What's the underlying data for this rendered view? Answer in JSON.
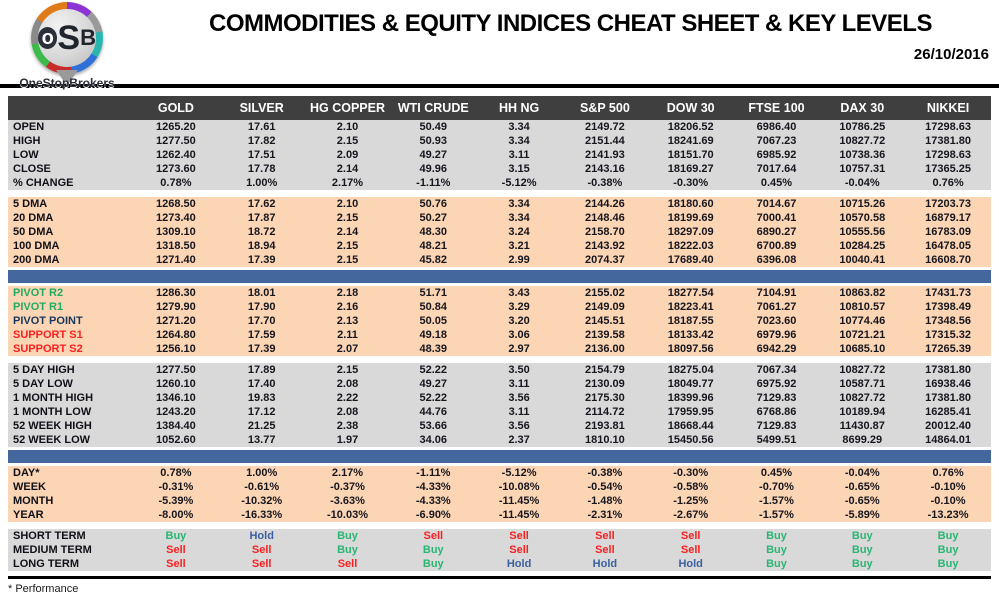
{
  "header": {
    "logo": {
      "l1": "o",
      "l2": "S",
      "l3": "B",
      "name": "OneStopBrokers"
    },
    "title": "COMMODITIES & EQUITY INDICES CHEAT SHEET & KEY LEVELS",
    "date": "26/10/2016"
  },
  "colors": {
    "header_row_bg": "#3f3f3f",
    "gray_section": "#d9d9d9",
    "peach_section": "#fcd5b4",
    "blue_separator": "#44689e",
    "buy_green": "#2ab573",
    "sell_red": "#fb2020",
    "hold_blue": "#3a5fa0",
    "pivot_point_navy": "#17375d"
  },
  "table": {
    "columns": [
      "GOLD",
      "SILVER",
      "HG COPPER",
      "WTI CRUDE",
      "HH NG",
      "S&P 500",
      "DOW 30",
      "FTSE 100",
      "DAX 30",
      "NIKKEI"
    ],
    "sections": [
      {
        "name": "ohlc",
        "bg": "gray",
        "after": "white",
        "rows": [
          {
            "label": "OPEN",
            "values": [
              "1265.20",
              "17.61",
              "2.10",
              "50.49",
              "3.34",
              "2149.72",
              "18206.52",
              "6986.40",
              "10786.25",
              "17298.63"
            ]
          },
          {
            "label": "HIGH",
            "values": [
              "1277.50",
              "17.82",
              "2.15",
              "50.93",
              "3.34",
              "2151.44",
              "18241.69",
              "7067.23",
              "10827.72",
              "17381.80"
            ]
          },
          {
            "label": "LOW",
            "values": [
              "1262.40",
              "17.51",
              "2.09",
              "49.27",
              "3.11",
              "2141.93",
              "18151.70",
              "6985.92",
              "10738.36",
              "17298.63"
            ]
          },
          {
            "label": "CLOSE",
            "values": [
              "1273.60",
              "17.78",
              "2.14",
              "49.96",
              "3.15",
              "2143.16",
              "18169.27",
              "7017.64",
              "10757.31",
              "17365.25"
            ]
          },
          {
            "label": "% CHANGE",
            "values": [
              "0.78%",
              "1.00%",
              "2.17%",
              "-1.11%",
              "-5.12%",
              "-0.38%",
              "-0.30%",
              "0.45%",
              "-0.04%",
              "0.76%"
            ]
          }
        ]
      },
      {
        "name": "moving-averages",
        "bg": "peach",
        "after": "blue",
        "rows": [
          {
            "label": "5 DMA",
            "values": [
              "1268.50",
              "17.62",
              "2.10",
              "50.76",
              "3.34",
              "2144.26",
              "18180.60",
              "7014.67",
              "10715.26",
              "17203.73"
            ]
          },
          {
            "label": "20 DMA",
            "values": [
              "1273.40",
              "17.87",
              "2.15",
              "50.27",
              "3.34",
              "2148.46",
              "18199.69",
              "7000.41",
              "10570.58",
              "16879.17"
            ]
          },
          {
            "label": "50 DMA",
            "values": [
              "1309.10",
              "18.72",
              "2.14",
              "48.30",
              "3.24",
              "2158.70",
              "18297.09",
              "6890.27",
              "10555.56",
              "16783.09"
            ]
          },
          {
            "label": "100 DMA",
            "values": [
              "1318.50",
              "18.94",
              "2.15",
              "48.21",
              "3.21",
              "2143.92",
              "18222.03",
              "6700.89",
              "10284.25",
              "16478.05"
            ]
          },
          {
            "label": "200 DMA",
            "values": [
              "1271.40",
              "17.39",
              "2.15",
              "45.82",
              "2.99",
              "2074.37",
              "17689.40",
              "6396.08",
              "10040.41",
              "16608.70"
            ]
          }
        ]
      },
      {
        "name": "pivots",
        "bg": "peach",
        "after": "white",
        "rows": [
          {
            "label": "PIVOT R2",
            "label_color": "green",
            "values": [
              "1286.30",
              "18.01",
              "2.18",
              "51.71",
              "3.43",
              "2155.02",
              "18277.54",
              "7104.91",
              "10863.82",
              "17431.73"
            ]
          },
          {
            "label": "PIVOT R1",
            "label_color": "green",
            "values": [
              "1279.90",
              "17.90",
              "2.16",
              "50.84",
              "3.29",
              "2149.09",
              "18223.41",
              "7061.27",
              "10810.57",
              "17398.49"
            ]
          },
          {
            "label": "PIVOT POINT",
            "label_color": "navy",
            "values": [
              "1271.20",
              "17.70",
              "2.13",
              "50.05",
              "3.20",
              "2145.51",
              "18187.55",
              "7023.60",
              "10774.46",
              "17348.56"
            ]
          },
          {
            "label": "SUPPORT S1",
            "label_color": "red",
            "values": [
              "1264.80",
              "17.59",
              "2.11",
              "49.18",
              "3.06",
              "2139.58",
              "18133.42",
              "6979.96",
              "10721.21",
              "17315.32"
            ]
          },
          {
            "label": "SUPPORT S2",
            "label_color": "red",
            "values": [
              "1256.10",
              "17.39",
              "2.07",
              "48.39",
              "2.97",
              "2136.00",
              "18097.56",
              "6942.29",
              "10685.10",
              "17265.39"
            ]
          }
        ]
      },
      {
        "name": "ranges",
        "bg": "gray",
        "after": "blue",
        "rows": [
          {
            "label": "5 DAY HIGH",
            "values": [
              "1277.50",
              "17.89",
              "2.15",
              "52.22",
              "3.50",
              "2154.79",
              "18275.04",
              "7067.34",
              "10827.72",
              "17381.80"
            ]
          },
          {
            "label": "5 DAY LOW",
            "values": [
              "1260.10",
              "17.40",
              "2.08",
              "49.27",
              "3.11",
              "2130.09",
              "18049.77",
              "6975.92",
              "10587.71",
              "16938.46"
            ]
          },
          {
            "label": "1 MONTH HIGH",
            "values": [
              "1346.10",
              "19.83",
              "2.22",
              "52.22",
              "3.56",
              "2175.30",
              "18399.96",
              "7129.83",
              "10827.72",
              "17381.80"
            ]
          },
          {
            "label": "1 MONTH LOW",
            "values": [
              "1243.20",
              "17.12",
              "2.08",
              "44.76",
              "3.11",
              "2114.72",
              "17959.95",
              "6768.86",
              "10189.94",
              "16285.41"
            ]
          },
          {
            "label": "52 WEEK HIGH",
            "values": [
              "1384.40",
              "21.25",
              "2.38",
              "53.66",
              "3.56",
              "2193.81",
              "18668.44",
              "7129.83",
              "11430.87",
              "20012.40"
            ]
          },
          {
            "label": "52 WEEK LOW",
            "values": [
              "1052.60",
              "13.77",
              "1.97",
              "34.06",
              "2.37",
              "1810.10",
              "15450.56",
              "5499.51",
              "8699.29",
              "14864.01"
            ]
          }
        ]
      },
      {
        "name": "performance",
        "bg": "peach",
        "after": "white",
        "rows": [
          {
            "label": "DAY*",
            "values": [
              "0.78%",
              "1.00%",
              "2.17%",
              "-1.11%",
              "-5.12%",
              "-0.38%",
              "-0.30%",
              "0.45%",
              "-0.04%",
              "0.76%"
            ]
          },
          {
            "label": "WEEK",
            "values": [
              "-0.31%",
              "-0.61%",
              "-0.37%",
              "-4.33%",
              "-10.08%",
              "-0.54%",
              "-0.58%",
              "-0.70%",
              "-0.65%",
              "-0.10%"
            ]
          },
          {
            "label": "MONTH",
            "values": [
              "-5.39%",
              "-10.32%",
              "-3.63%",
              "-4.33%",
              "-11.45%",
              "-1.48%",
              "-1.25%",
              "-1.57%",
              "-0.65%",
              "-0.10%"
            ]
          },
          {
            "label": "YEAR",
            "values": [
              "-8.00%",
              "-16.33%",
              "-10.03%",
              "-6.90%",
              "-11.45%",
              "-2.31%",
              "-2.67%",
              "-1.57%",
              "-5.89%",
              "-13.23%"
            ]
          }
        ]
      },
      {
        "name": "signals",
        "bg": "gray",
        "after": "none",
        "signal": true,
        "rows": [
          {
            "label": "SHORT TERM",
            "values": [
              "Buy",
              "Hold",
              "Buy",
              "Sell",
              "Sell",
              "Sell",
              "Sell",
              "Buy",
              "Buy",
              "Buy"
            ]
          },
          {
            "label": "MEDIUM TERM",
            "values": [
              "Sell",
              "Sell",
              "Buy",
              "Buy",
              "Sell",
              "Sell",
              "Sell",
              "Buy",
              "Buy",
              "Buy"
            ]
          },
          {
            "label": "LONG TERM",
            "values": [
              "Sell",
              "Sell",
              "Sell",
              "Buy",
              "Hold",
              "Hold",
              "Hold",
              "Buy",
              "Buy",
              "Buy"
            ]
          }
        ]
      }
    ]
  },
  "footer": {
    "note": "* Performance"
  }
}
